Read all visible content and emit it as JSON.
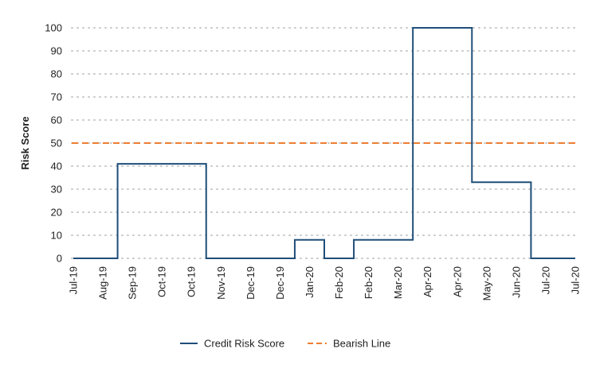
{
  "chart_data": {
    "type": "line",
    "title": "",
    "xlabel": "",
    "ylabel": "Risk Score",
    "ylim": [
      0,
      100
    ],
    "yticks": [
      0,
      10,
      20,
      30,
      40,
      50,
      60,
      70,
      80,
      90,
      100
    ],
    "x_tick_labels": [
      "Jul-19",
      "Aug-19",
      "Sep-19",
      "Oct-19",
      "Oct-19",
      "Nov-19",
      "Dec-19",
      "Dec-19",
      "Jan-20",
      "Feb-20",
      "Feb-20",
      "Mar-20",
      "Apr-20",
      "Apr-20",
      "May-20",
      "Jun-20",
      "Jul-20",
      "Jul-20"
    ],
    "grid": {
      "horizontal": true,
      "style": "dotted"
    },
    "legend_placement": "bottom-center",
    "colors": {
      "credit_risk": "#1f4e79",
      "bearish": "#ed7d31",
      "grid": "#c8c8c8"
    },
    "series": [
      {
        "name": "Credit Risk Score",
        "style": "solid-step",
        "values": [
          0,
          0,
          41,
          41,
          41,
          0,
          0,
          0,
          8,
          0,
          8,
          8,
          100,
          100,
          33,
          33,
          0,
          0
        ]
      },
      {
        "name": "Bearish Line",
        "style": "dashed",
        "values": [
          50,
          50,
          50,
          50,
          50,
          50,
          50,
          50,
          50,
          50,
          50,
          50,
          50,
          50,
          50,
          50,
          50,
          50
        ]
      }
    ]
  }
}
